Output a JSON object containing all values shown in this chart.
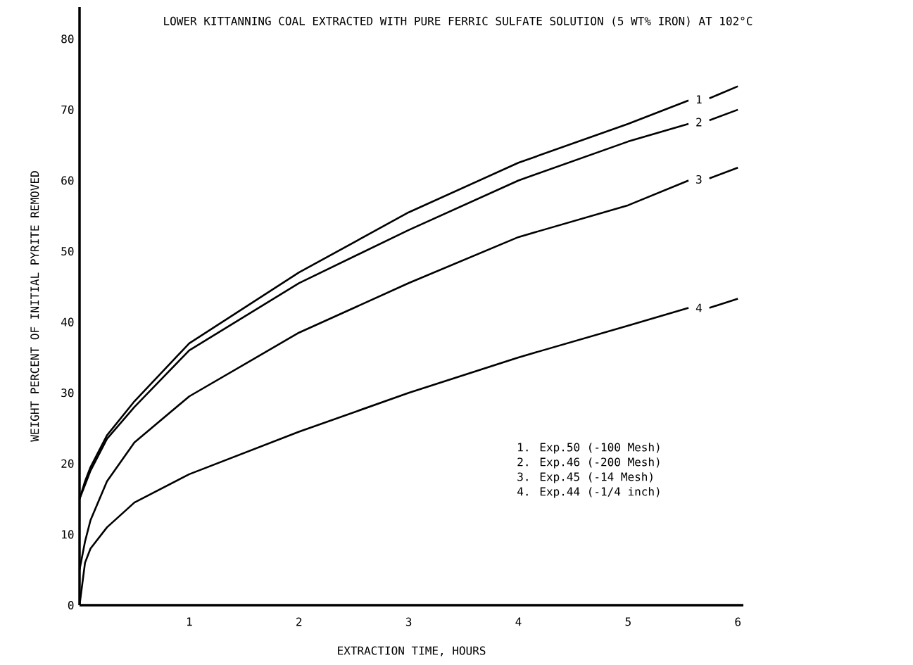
{
  "chart_data": {
    "type": "line",
    "title": "LOWER KITTANNING COAL EXTRACTED WITH PURE FERRIC SULFATE SOLUTION (5 WT% IRON) AT 102°C",
    "xlabel": "EXTRACTION TIME, HOURS",
    "ylabel": "WEIGHT PERCENT OF INITIAL PYRITE REMOVED",
    "x": [
      0,
      0.05,
      0.1,
      0.25,
      0.5,
      1,
      2,
      3,
      4,
      5,
      5.55,
      5.65,
      5.74,
      6
    ],
    "series": [
      {
        "name": "1",
        "color": "#000000",
        "values": [
          15,
          17.5,
          19.5,
          24,
          28.8,
          37,
          47,
          55.5,
          62.5,
          68,
          71.3,
          null,
          71.6,
          73.3
        ]
      },
      {
        "name": "2",
        "color": "#000000",
        "values": [
          15,
          17,
          19,
          23.5,
          28,
          36,
          45.5,
          53,
          60,
          65.5,
          68,
          null,
          68.5,
          70
        ]
      },
      {
        "name": "3",
        "color": "#000000",
        "values": [
          5,
          9,
          12,
          17.5,
          23,
          29.5,
          38.5,
          45.5,
          52,
          56.5,
          60,
          null,
          60.3,
          61.8
        ]
      },
      {
        "name": "4",
        "color": "#000000",
        "values": [
          0,
          6,
          8,
          11,
          14.5,
          18.5,
          24.5,
          30,
          35,
          39.5,
          42,
          null,
          42,
          43.3
        ]
      }
    ],
    "xlim": [
      0,
      6.05
    ],
    "ylim": [
      0,
      84.5
    ],
    "xticks": [
      1,
      2,
      3,
      4,
      5,
      6
    ],
    "yticks": [
      0,
      10,
      20,
      30,
      40,
      50,
      60,
      70,
      80
    ],
    "grid": false,
    "marker": "none",
    "line_style": "solid",
    "annotations": [
      "1. Exp.50 (-100 Mesh)",
      "2. Exp.46 (-200 Mesh)",
      "3. Exp.45 (-14 Mesh)",
      "4. Exp.44 (-1/4 inch)"
    ]
  }
}
